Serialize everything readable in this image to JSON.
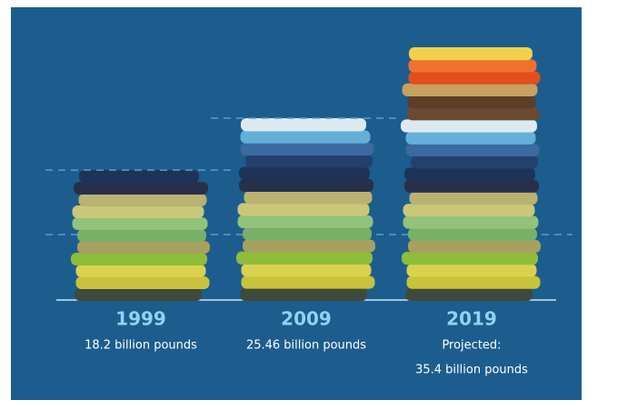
{
  "chart_data": {
    "type": "bar",
    "categories": [
      "1999",
      "2009",
      "2019"
    ],
    "values": [
      18.2,
      25.46,
      35.4
    ],
    "value_labels": [
      "18.2 billion pounds",
      "25.46 billion pounds",
      "35.4 billion pounds"
    ],
    "annotations": [
      {
        "category": "2019",
        "text": "Projected:"
      }
    ]
  }
}
